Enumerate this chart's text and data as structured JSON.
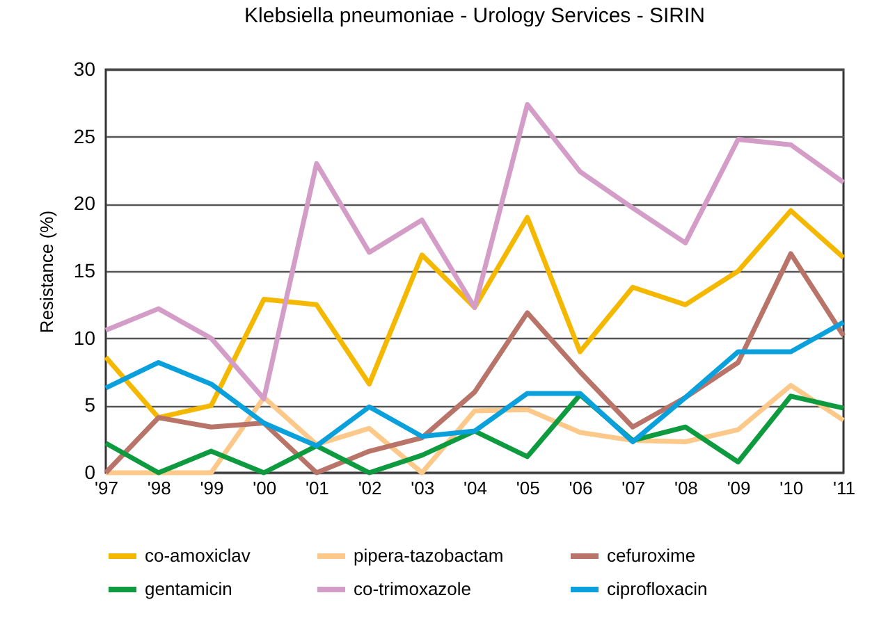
{
  "chart_data": {
    "type": "line",
    "title": "Klebsiella pneumoniae - Urology Services - SIRIN",
    "ylabel": "Resistance  (%)",
    "categories": [
      "'97",
      "'98",
      "'99",
      "'00",
      "'01",
      "'02",
      "'03",
      "'04",
      "'05",
      "'06",
      "'07",
      "'08",
      "'09",
      "'10",
      "'11"
    ],
    "series": [
      {
        "name": "co-amoxiclav",
        "color": "#f5b800",
        "values": [
          8.6,
          4.1,
          5.0,
          12.9,
          12.5,
          6.6,
          16.2,
          12.3,
          19.0,
          9.0,
          13.8,
          12.5,
          15.0,
          19.5,
          16.0
        ]
      },
      {
        "name": "pipera-tazobactam",
        "color": "#fcc98a",
        "values": [
          0,
          0,
          0,
          5.6,
          2.1,
          3.3,
          0,
          4.6,
          4.7,
          3.0,
          2.4,
          2.3,
          3.2,
          6.5,
          3.9
        ]
      },
      {
        "name": "cefuroxime",
        "color": "#b87468",
        "values": [
          0,
          4.1,
          3.4,
          3.7,
          0,
          1.6,
          2.6,
          6.0,
          11.9,
          7.5,
          3.4,
          5.6,
          8.2,
          16.3,
          10.2
        ]
      },
      {
        "name": "gentamicin",
        "color": "#0e9a3e",
        "values": [
          2.2,
          0,
          1.6,
          0,
          2.0,
          0,
          1.3,
          3.1,
          1.2,
          5.8,
          2.4,
          3.4,
          0.8,
          5.7,
          4.8
        ]
      },
      {
        "name": "co-trimoxazole",
        "color": "#d49dc8",
        "values": [
          10.6,
          12.2,
          10.0,
          5.5,
          23.0,
          16.4,
          18.8,
          12.3,
          27.4,
          22.4,
          19.7,
          17.1,
          24.8,
          24.4,
          21.6
        ]
      },
      {
        "name": "ciprofloxacin",
        "color": "#0aa0dc",
        "values": [
          6.3,
          8.2,
          6.6,
          3.7,
          2.0,
          4.9,
          2.7,
          3.1,
          5.9,
          5.9,
          2.3,
          5.6,
          9.0,
          9.0,
          11.2
        ]
      }
    ],
    "ylim": [
      0,
      30
    ],
    "yticks": [
      0,
      5,
      10,
      15,
      20,
      25,
      30
    ],
    "grid": "y",
    "legend": "bottom",
    "marker": "none",
    "line_style": "solid"
  }
}
